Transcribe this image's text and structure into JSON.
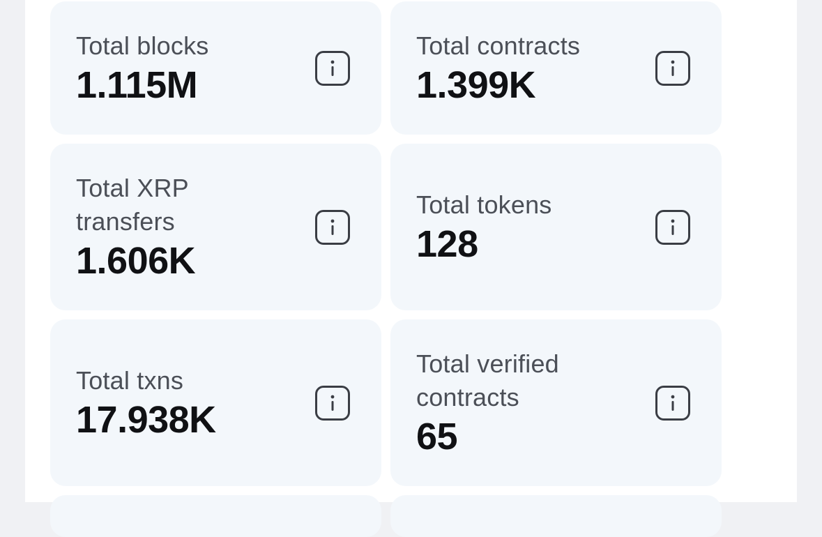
{
  "stats": [
    {
      "label": "Total blocks",
      "value": "1.115M",
      "icon": "info-icon"
    },
    {
      "label": "Total contracts",
      "value": "1.399K",
      "icon": "info-icon"
    },
    {
      "label": "Total XRP transfers",
      "value": "1.606K",
      "icon": "info-icon"
    },
    {
      "label": "Total tokens",
      "value": "128",
      "icon": "info-icon"
    },
    {
      "label": "Total txns",
      "value": "17.938K",
      "icon": "info-icon"
    },
    {
      "label": "Total verified contracts",
      "value": "65",
      "icon": "info-icon"
    }
  ]
}
